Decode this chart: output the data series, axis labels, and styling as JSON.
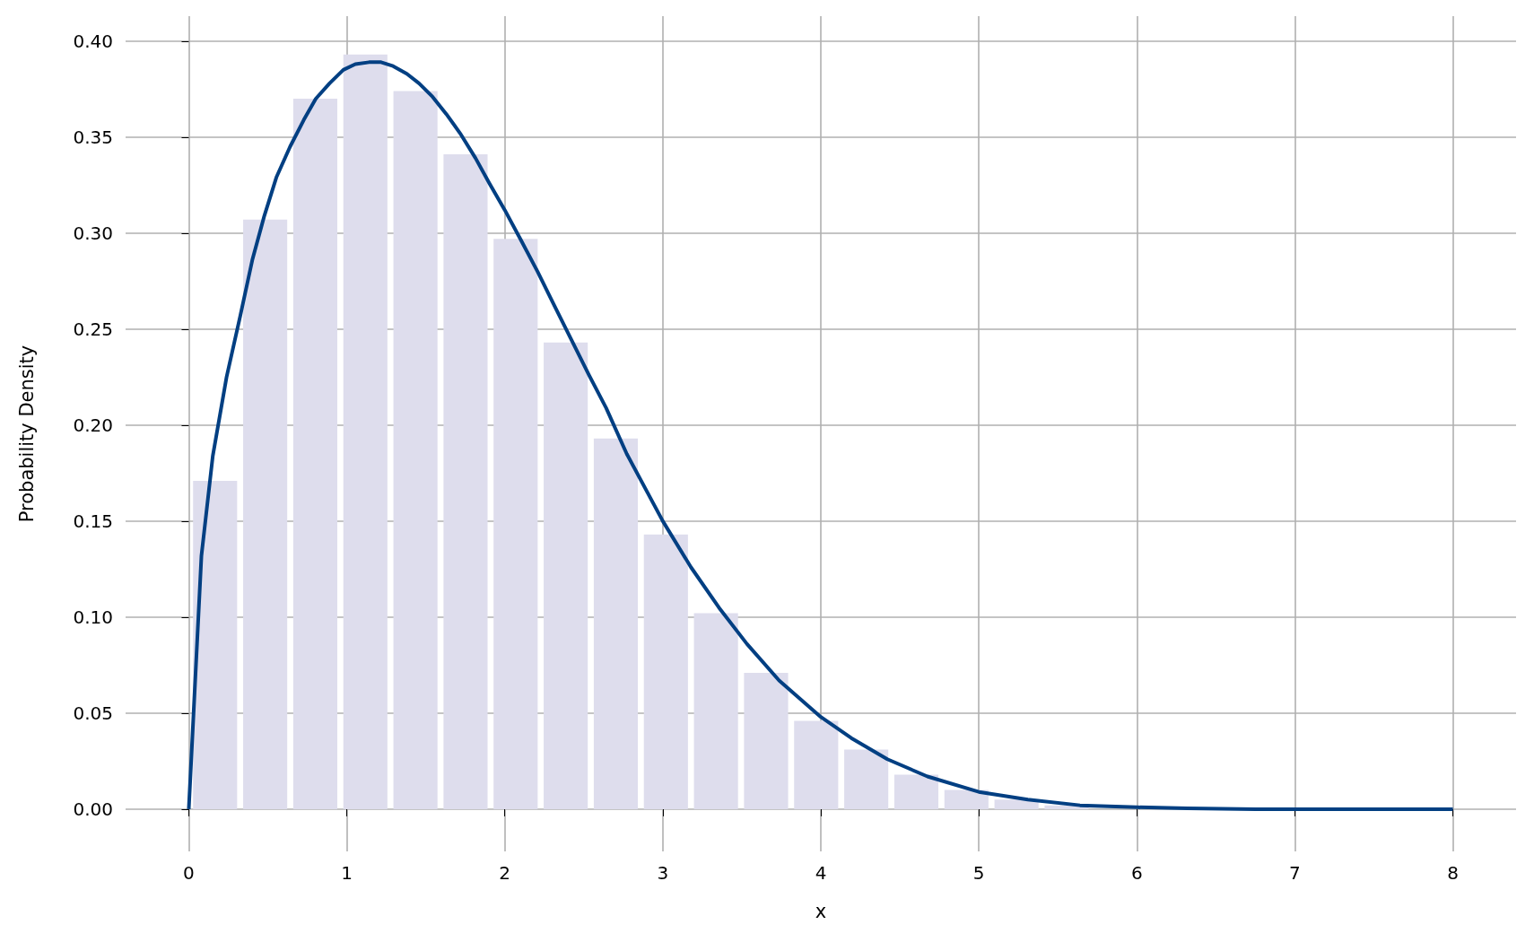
{
  "chart_data": {
    "type": "histogram",
    "xlabel": "x",
    "ylabel": "Probability Density",
    "xlim": [
      -0.4,
      8.4
    ],
    "xticks": [
      0,
      1,
      2,
      3,
      4,
      5,
      6,
      7,
      8
    ],
    "ylim": [
      -0.022,
      0.413
    ],
    "yticks": [
      {
        "value": 0,
        "label": "0.00"
      },
      {
        "value": 0.05,
        "label": "0.05"
      },
      {
        "value": 0.1,
        "label": "0.10"
      },
      {
        "value": 0.15,
        "label": "0.15"
      },
      {
        "value": 0.2,
        "label": "0.20"
      },
      {
        "value": 0.25,
        "label": "0.25"
      },
      {
        "value": 0.3,
        "label": "0.30"
      },
      {
        "value": 0.35,
        "label": "0.35"
      },
      {
        "value": 0.4,
        "label": "0.40"
      }
    ],
    "grid": true,
    "series": [
      {
        "color": "#dedded",
        "bins": [
          0.008,
          0.325,
          0.642,
          0.959,
          1.276,
          1.593,
          1.91,
          2.227,
          2.544,
          2.861,
          3.178,
          3.495,
          3.812,
          4.129,
          4.446,
          4.763,
          5.08,
          5.397,
          5.714
        ],
        "values": [
          0.171,
          0.307,
          0.37,
          0.393,
          0.374,
          0.341,
          0.297,
          0.243,
          0.193,
          0.143,
          0.102,
          0.071,
          0.046,
          0.031,
          0.018,
          0.01,
          0.005,
          0.002
        ]
      },
      {
        "type": "line",
        "color": "#023f82",
        "x": [
          0,
          0.08,
          0.152,
          0.239,
          0.326,
          0.402,
          0.478,
          0.554,
          0.641,
          0.728,
          0.804,
          0.891,
          0.978,
          1.054,
          1.141,
          1.217,
          1.293,
          1.38,
          1.457,
          1.543,
          1.63,
          1.717,
          1.815,
          1.902,
          2.0,
          2.098,
          2.207,
          2.315,
          2.424,
          2.533,
          2.641,
          2.772,
          3.0,
          3.178,
          3.355,
          3.533,
          3.736,
          4.0,
          4.193,
          4.421,
          4.675,
          5.0,
          5.31,
          5.64,
          6.0,
          6.32,
          6.75,
          7.0,
          8.0
        ],
        "values": [
          0,
          0.132,
          0.184,
          0.225,
          0.257,
          0.286,
          0.309,
          0.329,
          0.345,
          0.359,
          0.37,
          0.378,
          0.385,
          0.388,
          0.389,
          0.389,
          0.387,
          0.383,
          0.378,
          0.371,
          0.362,
          0.352,
          0.339,
          0.326,
          0.312,
          0.297,
          0.28,
          0.262,
          0.244,
          0.226,
          0.209,
          0.185,
          0.15,
          0.126,
          0.105,
          0.086,
          0.067,
          0.048,
          0.037,
          0.026,
          0.017,
          0.009,
          0.005,
          0.002,
          0.001,
          0.0004,
          0,
          0,
          0
        ]
      }
    ]
  }
}
